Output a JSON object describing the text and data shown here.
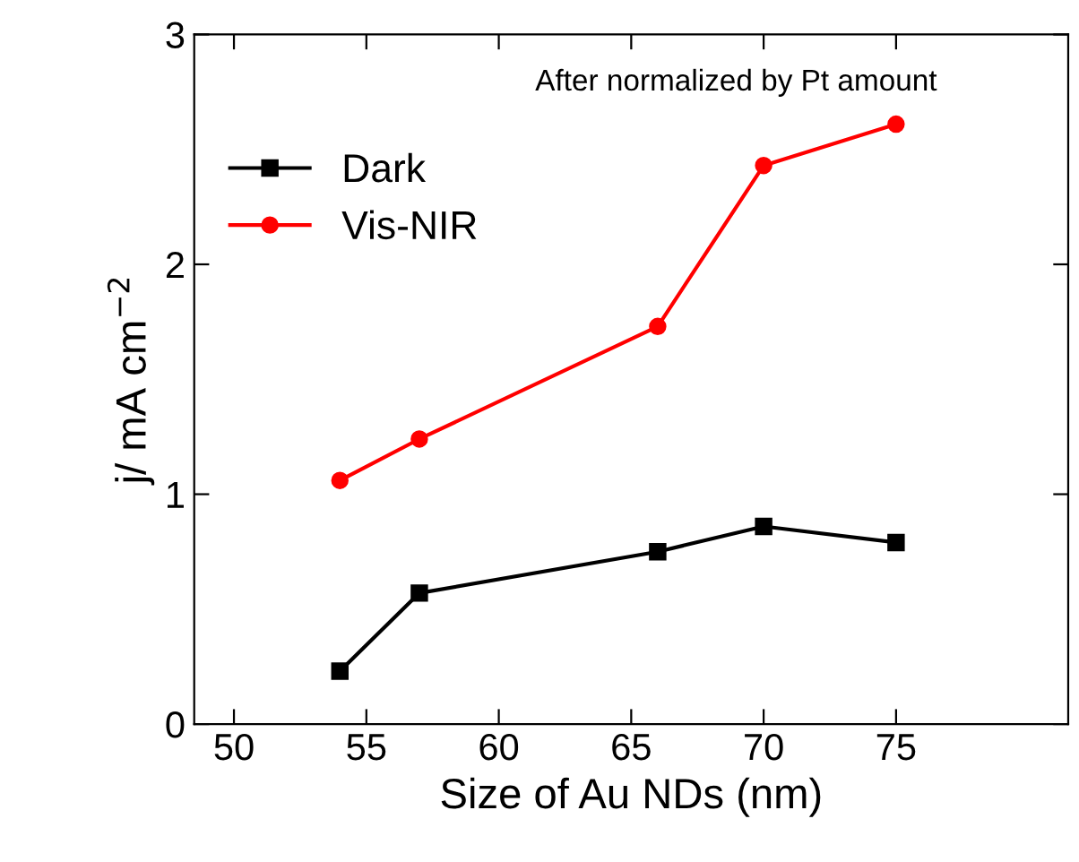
{
  "chart_data": {
    "type": "line",
    "xlabel": "Size of Au NDs (nm)",
    "ylabel": "j/ mA cm$^{−2}$",
    "annotations": [
      "After normalized by Pt amount"
    ],
    "x": [
      54,
      57,
      66,
      70,
      75
    ],
    "series": [
      {
        "name": "Dark",
        "color": "#000000",
        "marker": "square",
        "values": [
          0.23,
          0.57,
          0.75,
          0.86,
          0.79
        ]
      },
      {
        "name": "Vis-NIR",
        "color": "#ff0000",
        "marker": "circle",
        "values": [
          1.06,
          1.24,
          1.73,
          2.43,
          2.61
        ]
      }
    ],
    "xlim": [
      48.5,
      81.5
    ],
    "xticks": [
      50,
      55,
      60,
      65,
      70,
      75
    ],
    "ylim": [
      0,
      3
    ],
    "yticks": [
      0,
      1,
      2,
      3
    ],
    "grid": false,
    "legend": "top left"
  }
}
